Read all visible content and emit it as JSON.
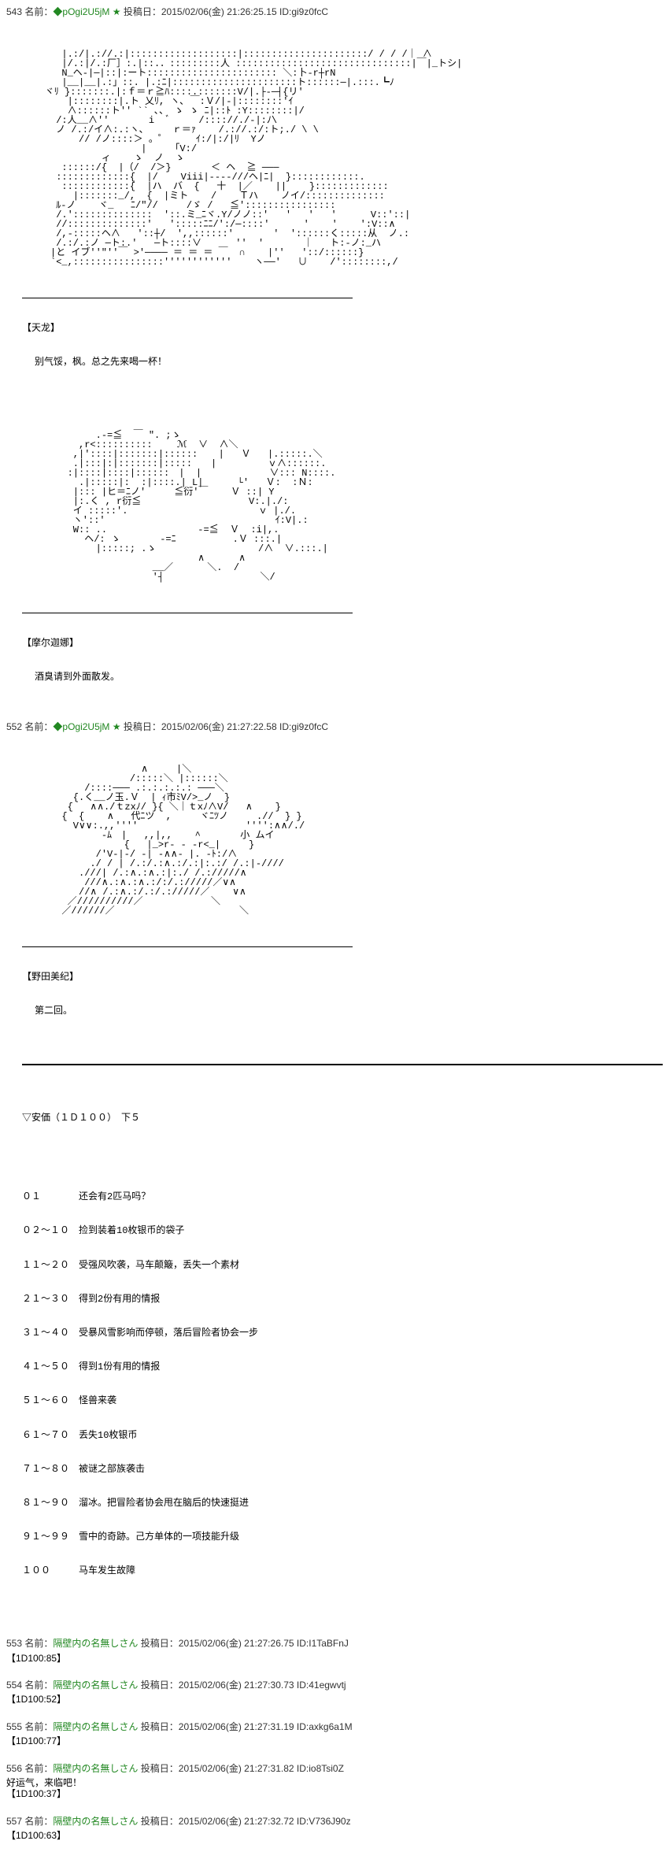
{
  "posts": [
    {
      "num": "543",
      "name_prefix": "名前：",
      "name": "◆pOgi2U5jM ★",
      "date_prefix": "投稿日：",
      "date": "2015/02/06(金) 21:26:25.15",
      "id_prefix": "ID:",
      "id": "gi9z0fcC",
      "ascii1": "       |.:/|.://.:|:::::::::::::::::::|::::::::::::::::::::::/ / / /｜ ∧\n       |/.:|/.:厂］:.|::.．:::::::::人 :::::::::::::::::::::::::::::::|￣|_トシ|\n       N_ヘ-|─|::|:ート::::::::::::::::::::::: ＼:卜-r┼rN\n       |__|__|.:」::. |.:ﾆ|::::::::::::::::::::::ト::::::─|.:::.┗ﾉ\n    ヾﾘ }:::::::.|:ｆ＝ｒ≧ﾊ::::.:::::::V/|.├-─┤{リ'\n        |::::::::|.ト 乂ﾘ, ヽ､ ￣:Ｖ/|-|::::::::'ｲ\n        ∧::::::ト'' `` ､、 ゝ ゝ ﾆ|::ﾄ :Y::::::::|/\n      /:人__∧''       i  ﾞ     /:::://./-|:ﾉ\\ \n      ノ /.:/イ∧:.:ヽ､     ｒ＝ｧ    /.://.:/:ト;./ \\ \\\n          // /ノ::::＞ 。゜     ｲ:/|:/|ﾘ  Yノ\n                     |     ｢V:/\n              ィ    ゝ  ノ  ゝ\n       ::::::/{  |（/  /＞}       ＜ ヘ  ≧ ─── \n      :::::::::::::{  |/    Viii|----///ヘ|ﾆ|  }::::::::::::.\n       ::::::::::::{  |ハ  バ  {   十  |／    ||    }:::::::::::::\n         |:::::::_/,  {  |ミト    /    Ｔハ    ノイ/::::::::::::::\n      ﾙ-ノ    ヾ_   ﾆ/\"//     /ゞ /   ≦'::::::::::::::::\n      /.'::::::::::::::  '::.ミ_ﾆヾ.Y/ノノ::'   '   '   '      V::'::| \n      //::::::::::::::'   ':::::ﾆﾆ/':/─::::'      '    '    ':V::∧\n      /,-:::::ヘ∧   '::┼/  ',,::::::'       '  '::::::く:::::从  ノ.:\n      /.:/.:ノ ─ト:.'   ─ト::::∨      ''  '       ｜   ト:-ノ:_ハ\n     |と イブ''\"''￣ >'──── ＝ ＝ ＝ ￣  ∩    |''   '::/::::::}\n     `<_,::::::::::::::::''''''''''''    ヽ──'   ∪    /'::::::::,/",
      "char1": "【天龙】",
      "text1": "别气馁，枫。总之先来喝一杯！",
      "ascii2": "             .-=≦  ￣ \". ;ゝ\n          ,r<::::::::::　　 ℳ  ∨  ∧＼\n         ,|'::::|:::::::|::::::　  |   Ｖ   |.:::::.＼\n         .|:::|:|:::::::|:::::　　|         ｖ∧::::::.\n        :|::::|::::|::::::　|  |            ∨::: N::::.\n          .|:::::|:  :|::::.| L|      └'   Ｖ:  :Ｎ:\n         |::: |ヒ＝ﾆノ'     ≦衍'￣    Ｖ ::| Y\n         |:.く , r衍≦                   V:.|./:\n         イ :::::'.                       ｖ |./.\n         ヽ'::'                              ｲ:V|.:\n         W:: ..                -=≦  Ｖ  :i|,.\n           ヘ/: ゝ       -=ﾆ          .Ｖ :::.| \n             |:::::; .ゝ                  /∧  ∨.:::.| \n                               ∧      ∧\n                       __／      ＼.  /\n                       '┤                 ＼/",
      "char2": "【摩尔迦娜】",
      "text2": "酒臭请到外面散发。"
    },
    {
      "num": "552",
      "name_prefix": "名前：",
      "name": "◆pOgi2U5jM ★",
      "date_prefix": "投稿日：",
      "date": "2015/02/06(金) 21:27:22.58",
      "id_prefix": "ID:",
      "id": "gi9z0fcC",
      "ascii1": "                     ∧     |＼\n                   /:::::＼ |::::::＼\n           /::::─── .:.:.:.:.: ───＼\n         {.く__ノ玉.Ｖ  | ｨ市ﾐV/>_ノ  }\n        {   ∧∧./ｔzxﾉ/ }{ ＼｜ｔxﾉ∧V/   ∧    }\n       {  {    ∧   代ﾆツ  ,     ヾﾆﾂノ     .//  } }\n         V∨∨:.,,''''                   '''':∧∧/./\n              -ﾑ　|   ,,|,,    ^       小 ムイ\n                  {   |_>r- - -r<_|     }\n             /'V-|-/ -| -∧∧- |. -ﾄ:/∧\n            ./ / | /.:/.:∧.:/.:|:.:/ /.:|-////\n          .///| /.:∧.:∧.:|:./ /.://///∧\n           ///∧.:∧.:∧.:/:/.://///／∨∧\n          //∧ /.:∧.:/.:/.://///／    ∨∧\n        ／//////////／            ＼\n       ／//////／                      ＼",
      "char1": "【野田美纪】",
      "text1": "第二回。",
      "ankaHeader": "▽安価（１Ｄ１００）　下５",
      "options": [
        {
          "range": "０１　　　　",
          "text": "还会有2匹马吗？"
        },
        {
          "range": "０２～１０　",
          "text": "捡到装着10枚银币的袋子"
        },
        {
          "range": "１１～２０　",
          "text": "受强风吹袭，马车颠簸，丢失一个素材"
        },
        {
          "range": "２１～３０　",
          "text": "得到2份有用的情报"
        },
        {
          "range": "３１～４０　",
          "text": "受暴风雪影响而停顿，落后冒险者协会一步"
        },
        {
          "range": "４１～５０　",
          "text": "得到1份有用的情报"
        },
        {
          "range": "５１～６０　",
          "text": "怪兽来袭"
        },
        {
          "range": "６１～７０　",
          "text": "丢失10枚银币"
        },
        {
          "range": "７１～８０　",
          "text": "被谜之部族袭击"
        },
        {
          "range": "８１～９０　",
          "text": "溜冰。把冒险者协会甩在脑后的快速挺进"
        },
        {
          "range": "９１～９９　",
          "text": "雪中的奇跡。己方单体的一项技能升级"
        },
        {
          "range": "１００　　　",
          "text": "马车发生故障"
        }
      ]
    },
    {
      "num": "553",
      "name_prefix": "名前：",
      "name": "隔壁内の名無しさん",
      "date_prefix": "投稿日：",
      "date": "2015/02/06(金) 21:27:26.75",
      "id_prefix": "ID:",
      "id": "I1TaBFnJ",
      "body": "【1D100:85】"
    },
    {
      "num": "554",
      "name_prefix": "名前：",
      "name": "隔壁内の名無しさん",
      "date_prefix": "投稿日：",
      "date": "2015/02/06(金) 21:27:30.73",
      "id_prefix": "ID:",
      "id": "41egwvtj",
      "body": "【1D100:52】"
    },
    {
      "num": "555",
      "name_prefix": "名前：",
      "name": "隔壁内の名無しさん",
      "date_prefix": "投稿日：",
      "date": "2015/02/06(金) 21:27:31.19",
      "id_prefix": "ID:",
      "id": "axkg6a1M",
      "body": "【1D100:77】"
    },
    {
      "num": "556",
      "name_prefix": "名前：",
      "name": "隔壁内の名無しさん",
      "date_prefix": "投稿日：",
      "date": "2015/02/06(金) 21:27:31.82",
      "id_prefix": "ID:",
      "id": "io8Tsi0Z",
      "body_pre": "好运气，来临吧！",
      "body": "【1D100:37】"
    },
    {
      "num": "557",
      "name_prefix": "名前：",
      "name": "隔壁内の名無しさん",
      "date_prefix": "投稿日：",
      "date": "2015/02/06(金) 21:27:32.72",
      "id_prefix": "ID:",
      "id": "V736J90z",
      "body": "【1D100:63】"
    }
  ]
}
